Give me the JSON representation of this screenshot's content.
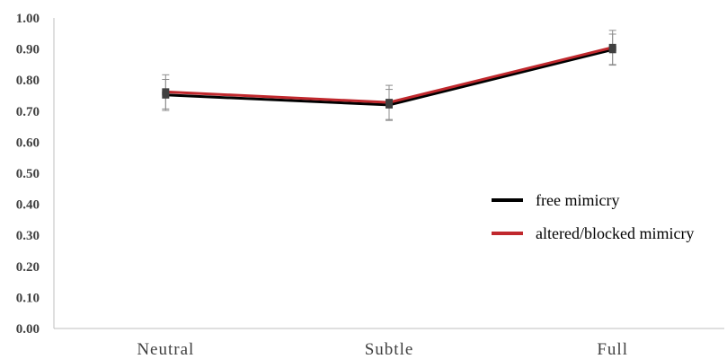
{
  "chart_data": {
    "type": "line",
    "title": "",
    "xlabel": "",
    "ylabel": "",
    "categories": [
      "Neutral",
      "Subtle",
      "Full"
    ],
    "ylim": [
      0,
      1
    ],
    "yticks": [
      "0.00",
      "0.10",
      "0.20",
      "0.30",
      "0.40",
      "0.50",
      "0.60",
      "0.70",
      "0.80",
      "0.90",
      "1.00"
    ],
    "grid": false,
    "legend_position": "right",
    "series": [
      {
        "name": "free mimicry",
        "color": "#000000",
        "values": [
          0.752,
          0.72,
          0.898
        ],
        "error": [
          0.05,
          0.05,
          0.05
        ]
      },
      {
        "name": "altered/blocked mimicry",
        "color": "#c0282d",
        "values": [
          0.762,
          0.728,
          0.905
        ],
        "error": [
          0.055,
          0.055,
          0.055
        ]
      }
    ],
    "marker": "square",
    "marker_color": "#404040",
    "errorbar_color": "#8c8c8c"
  }
}
